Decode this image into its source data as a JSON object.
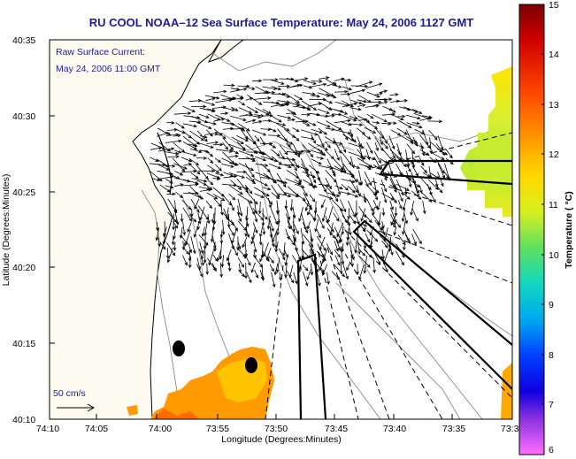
{
  "title": "RU COOL  NOAA–12  Sea Surface Temperature:  May 24, 2006 1127 GMT",
  "annotation": {
    "line1": "Raw Surface Current:",
    "line2": "May 24, 2006 11:00 GMT"
  },
  "scale_label": "50 cm/s",
  "axes": {
    "xlabel": "Longitude (Degrees:Minutes)",
    "ylabel": "Latitude (Degrees:Minutes)",
    "x_ticks": [
      "74:10",
      "74:05",
      "74:00",
      "73:55",
      "73:50",
      "73:45",
      "73:40",
      "73:35",
      "73:3"
    ],
    "y_ticks": [
      "40:35",
      "40:30",
      "40:25",
      "40:20",
      "40:15",
      "40:10"
    ]
  },
  "colorbar": {
    "label": "Temperature ( °C)",
    "min": 6,
    "max": 15,
    "ticks": [
      "15",
      "14",
      "13",
      "12",
      "11",
      "10",
      "9",
      "8",
      "7",
      "6"
    ]
  },
  "colors": {
    "title": "#1a1aa0",
    "land": "#fdfbf0",
    "frame": "#000000"
  }
}
